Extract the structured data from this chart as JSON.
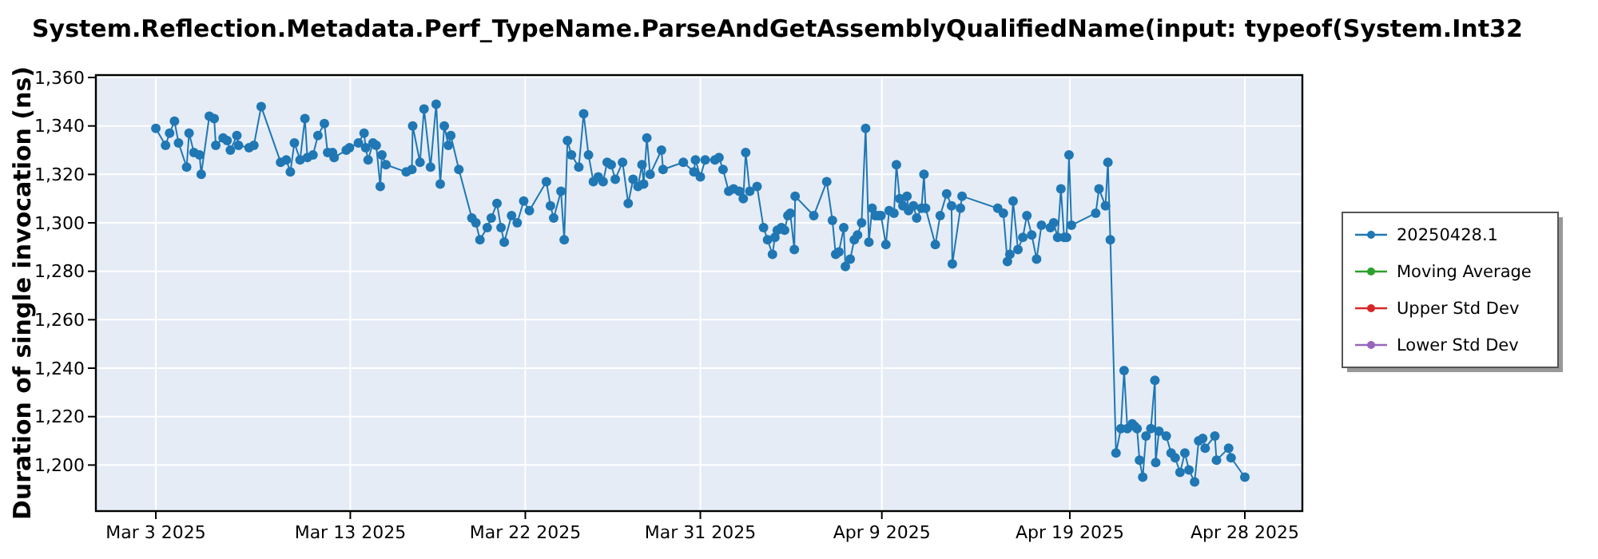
{
  "chart_data": {
    "type": "line",
    "title": "System.Reflection.Metadata.Perf_TypeName.ParseAndGetAssemblyQualifiedName(input: typeof(System.Int32",
    "ylabel": "Duration of single invocation (ns)",
    "xlim": [
      "2025-02-27T22:00",
      "2025-04-30T23:00"
    ],
    "xticks": [
      {
        "value": "2025-03-03T00:00",
        "label": "Mar 3 2025"
      },
      {
        "value": "2025-03-13",
        "label": "Mar 13 2025"
      },
      {
        "value": "2025-03-22",
        "label": "Mar 22 2025"
      },
      {
        "value": "2025-03-31T00:00",
        "label": "Mar 31 2025"
      },
      {
        "value": "2025-04-09T08:00",
        "label": "Apr 9 2025"
      },
      {
        "value": "2025-04-19",
        "label": "Apr 19 2025"
      },
      {
        "value": "2025-04-28T00:00",
        "label": "Apr 28 2025"
      }
    ],
    "ylim": [
      1181,
      1361
    ],
    "yticks": [
      {
        "value": 1200,
        "label": "1,200"
      },
      {
        "value": 1220,
        "label": "1,220"
      },
      {
        "value": 1240,
        "label": "1,240"
      },
      {
        "value": 1260,
        "label": "1,260"
      },
      {
        "value": 1280,
        "label": "1,280"
      },
      {
        "value": 1300,
        "label": "1,300"
      },
      {
        "value": 1320,
        "label": "1,320"
      },
      {
        "value": 1340,
        "label": "1,340"
      },
      {
        "value": 1360,
        "label": "1,360"
      }
    ],
    "grid": true,
    "legend": "right",
    "marker": "circle",
    "line_style": "solid",
    "series": [
      {
        "name": "20250428.1",
        "color": "#1f77b4",
        "x": [
          "2025-03-03T00:00",
          "2025-03-03T12:00",
          "2025-03-03T17:00",
          "2025-03-03T23:00",
          "2025-03-04T04:00",
          "2025-03-04T14:00",
          "2025-03-04T17:00",
          "2025-03-04T23:00",
          "2025-03-05T06:00",
          "2025-03-05T08:00",
          "2025-03-05T18:00",
          "2025-03-06T00:00",
          "2025-03-06T02:00",
          "2025-03-06T11:00",
          "2025-03-06T16:00",
          "2025-03-06T20:00",
          "2025-03-07T04:00",
          "2025-03-07T06:00",
          "2025-03-07T19:00",
          "2025-03-08T01:00",
          "2025-03-08T10:00",
          "2025-03-09T10:00",
          "2025-03-09T17:00",
          "2025-03-09T22:00",
          "2025-03-10T03:00",
          "2025-03-10T10:00",
          "2025-03-10T16:00",
          "2025-03-10T19:00",
          "2025-03-11T02:00",
          "2025-03-11T08:00",
          "2025-03-11T16:00",
          "2025-03-11T20:00",
          "2025-03-12T02:00",
          "2025-03-12T04:00",
          "2025-03-12T19:00",
          "2025-03-12T23:00",
          "2025-03-13T10:00",
          "2025-03-13T17:00",
          "2025-03-13T19:00",
          "2025-03-13T22:00",
          "2025-03-14T04:00",
          "2025-03-14T08:00",
          "2025-03-14T13:00",
          "2025-03-14T15:00",
          "2025-03-14T20:00",
          "2025-03-15T21:00",
          "2025-03-16T04:00",
          "2025-03-16T05:00",
          "2025-03-16T14:00",
          "2025-03-16T19:00",
          "2025-03-17T03:00",
          "2025-03-17T10:00",
          "2025-03-17T15:00",
          "2025-03-17T20:00",
          "2025-03-18T01:00",
          "2025-03-18T04:00",
          "2025-03-18T14:00",
          "2025-03-19T06:00",
          "2025-03-19T11:00",
          "2025-03-19T16:00",
          "2025-03-20T01:00",
          "2025-03-20T06:00",
          "2025-03-20T13:00",
          "2025-03-20T18:00",
          "2025-03-20T22:00",
          "2025-03-21T07:00",
          "2025-03-21T14:00",
          "2025-03-21T22:00",
          "2025-03-22T05:00",
          "2025-03-23T02:00",
          "2025-03-23T07:00",
          "2025-03-23T11:00",
          "2025-03-23T20:00",
          "2025-03-24T00:00",
          "2025-03-24T04:00",
          "2025-03-24T09:00",
          "2025-03-24T18:00",
          "2025-03-25T00:00",
          "2025-03-25T06:00",
          "2025-03-25T12:00",
          "2025-03-25T18:00",
          "2025-03-26T00:00",
          "2025-03-26T05:00",
          "2025-03-26T10:00",
          "2025-03-26T15:00",
          "2025-03-27T00:00",
          "2025-03-27T07:00",
          "2025-03-27T13:00",
          "2025-03-27T19:00",
          "2025-03-28T00:00",
          "2025-03-28T02:00",
          "2025-03-28T06:00",
          "2025-03-28T10:00",
          "2025-03-29T00:00",
          "2025-03-29T02:00",
          "2025-03-30T03:00",
          "2025-03-30T16:00",
          "2025-03-30T18:00",
          "2025-03-31T00:00",
          "2025-03-31T06:00",
          "2025-03-31T18:00",
          "2025-03-31T23:00",
          "2025-04-01T04:00",
          "2025-04-01T11:00",
          "2025-04-01T17:00",
          "2025-04-02T00:00",
          "2025-04-02T05:00",
          "2025-04-02T08:00",
          "2025-04-02T13:00",
          "2025-04-02T22:00",
          "2025-04-03T06:00",
          "2025-04-03T11:00",
          "2025-04-03T17:00",
          "2025-04-03T20:00",
          "2025-04-03T23:00",
          "2025-04-04T04:00",
          "2025-04-04T08:00",
          "2025-04-04T12:00",
          "2025-04-04T15:00",
          "2025-04-04T20:00",
          "2025-04-04T21:00",
          "2025-04-05T20:00",
          "2025-04-06T12:00",
          "2025-04-06T19:00",
          "2025-04-06T23:00",
          "2025-04-07T03:00",
          "2025-04-07T09:00",
          "2025-04-07T11:00",
          "2025-04-07T17:00",
          "2025-04-07T22:00",
          "2025-04-08T02:00",
          "2025-04-08T07:00",
          "2025-04-08T12:00",
          "2025-04-08T16:00",
          "2025-04-08T20:00",
          "2025-04-09T00:00",
          "2025-04-09T04:00",
          "2025-04-09T07:00",
          "2025-04-09T13:00",
          "2025-04-09T17:00",
          "2025-04-09T23:00",
          "2025-04-10T02:00",
          "2025-04-10T06:00",
          "2025-04-10T10:00",
          "2025-04-10T15:00",
          "2025-04-10T17:00",
          "2025-04-10T23:00",
          "2025-04-11T03:00",
          "2025-04-11T09:00",
          "2025-04-11T12:00",
          "2025-04-11T14:00",
          "2025-04-12T02:00",
          "2025-04-12T08:00",
          "2025-04-12T16:00",
          "2025-04-12T22:00",
          "2025-04-12T23:00",
          "2025-04-13T09:00",
          "2025-04-13T11:00",
          "2025-04-15T07:00",
          "2025-04-15T14:00",
          "2025-04-15T19:00",
          "2025-04-15T22:00",
          "2025-04-16T02:00",
          "2025-04-16T08:00",
          "2025-04-16T14:00",
          "2025-04-16T19:00",
          "2025-04-17T01:00",
          "2025-04-17T07:00",
          "2025-04-17T13:00",
          "2025-04-18T00:00",
          "2025-04-18T04:00",
          "2025-04-18T09:00",
          "2025-04-18T13:00",
          "2025-04-18T17:00",
          "2025-04-18T20:00",
          "2025-04-18T23:00",
          "2025-04-19T02:00",
          "2025-04-20T08:00",
          "2025-04-20T12:00",
          "2025-04-20T20:00",
          "2025-04-20T23:00",
          "2025-04-21T02:00",
          "2025-04-21T09:00",
          "2025-04-21T15:00",
          "2025-04-21T19:00",
          "2025-04-21T23:00",
          "2025-04-22T05:00",
          "2025-04-22T08:00",
          "2025-04-22T11:00",
          "2025-04-22T14:00",
          "2025-04-22T18:00",
          "2025-04-22T22:00",
          "2025-04-23T04:00",
          "2025-04-23T09:00",
          "2025-04-23T10:00",
          "2025-04-23T14:00",
          "2025-04-23T23:00",
          "2025-04-24T05:00",
          "2025-04-24T10:00",
          "2025-04-24T16:00",
          "2025-04-24T22:00",
          "2025-04-25T03:00",
          "2025-04-25T10:00",
          "2025-04-25T15:00",
          "2025-04-25T20:00",
          "2025-04-25T23:00",
          "2025-04-26T11:00",
          "2025-04-26T13:00",
          "2025-04-27T04:00",
          "2025-04-27T07:00",
          "2025-04-28T00:00"
        ],
        "values": [
          1339,
          1332,
          1337,
          1342,
          1333,
          1323,
          1337,
          1329,
          1328,
          1320,
          1344,
          1343,
          1332,
          1335,
          1334,
          1330,
          1336,
          1332,
          1331,
          1332,
          1348,
          1325,
          1326,
          1321,
          1333,
          1326,
          1343,
          1327,
          1328,
          1336,
          1341,
          1329,
          1329,
          1327,
          1330,
          1331,
          1333,
          1337,
          1331,
          1326,
          1333,
          1332,
          1315,
          1328,
          1324,
          1321,
          1322,
          1340,
          1325,
          1347,
          1323,
          1349,
          1316,
          1340,
          1332,
          1336,
          1322,
          1302,
          1300,
          1293,
          1298,
          1302,
          1308,
          1298,
          1292,
          1303,
          1300,
          1309,
          1305,
          1317,
          1307,
          1302,
          1313,
          1293,
          1334,
          1328,
          1323,
          1345,
          1328,
          1317,
          1319,
          1317,
          1325,
          1324,
          1318,
          1325,
          1308,
          1318,
          1315,
          1324,
          1316,
          1335,
          1320,
          1330,
          1322,
          1325,
          1321,
          1326,
          1319,
          1326,
          1326,
          1327,
          1322,
          1313,
          1314,
          1313,
          1310,
          1329,
          1313,
          1315,
          1298,
          1293,
          1287,
          1294,
          1297,
          1298,
          1297,
          1303,
          1304,
          1289,
          1311,
          1303,
          1317,
          1301,
          1287,
          1288,
          1298,
          1282,
          1285,
          1293,
          1295,
          1300,
          1339,
          1292,
          1306,
          1303,
          1303,
          1303,
          1291,
          1305,
          1304,
          1324,
          1310,
          1307,
          1311,
          1305,
          1307,
          1302,
          1306,
          1320,
          1306,
          1291,
          1303,
          1312,
          1307,
          1283,
          1306,
          1311,
          1306,
          1304,
          1284,
          1287,
          1309,
          1289,
          1294,
          1303,
          1295,
          1285,
          1299,
          1298,
          1300,
          1294,
          1314,
          1294,
          1294,
          1328,
          1299,
          1304,
          1314,
          1307,
          1325,
          1293,
          1205,
          1215,
          1239,
          1215,
          1217,
          1216,
          1215,
          1202,
          1195,
          1212,
          1215,
          1235,
          1201,
          1214,
          1212,
          1205,
          1203,
          1197,
          1205,
          1198,
          1193,
          1210,
          1211,
          1207,
          1212,
          1202,
          1207,
          1203,
          1195
        ]
      },
      {
        "name": "Moving Average",
        "color": "#2ca02c"
      },
      {
        "name": "Upper Std Dev",
        "color": "#d62728"
      },
      {
        "name": "Lower Std Dev",
        "color": "#9467bd"
      }
    ]
  }
}
